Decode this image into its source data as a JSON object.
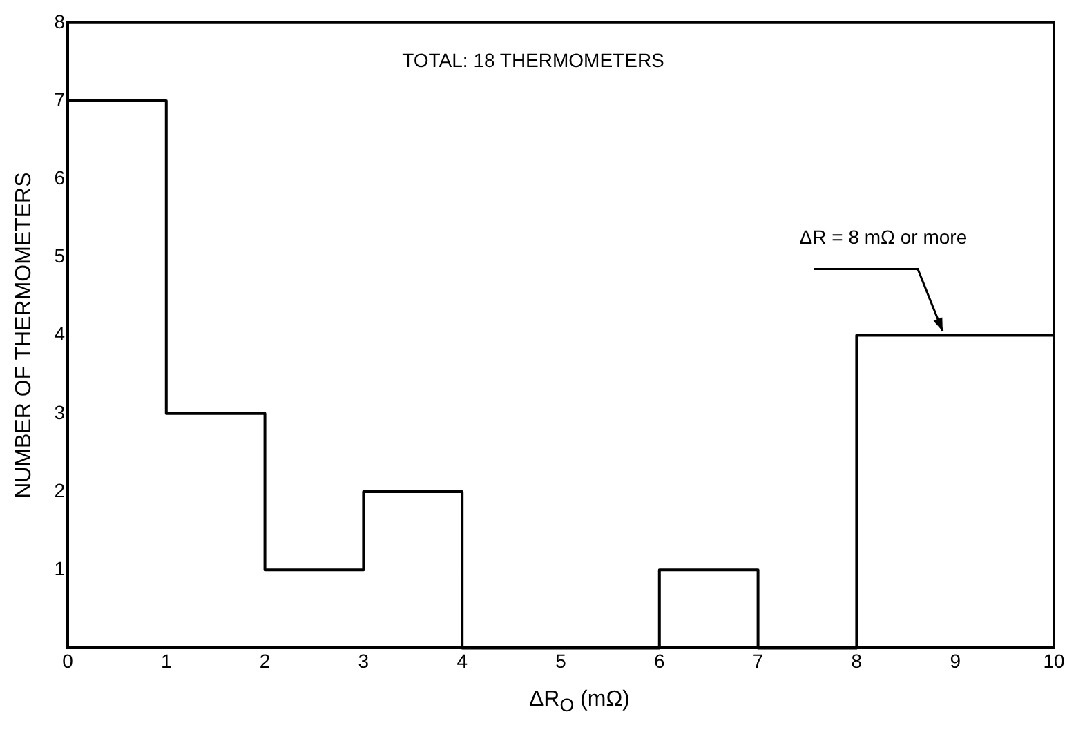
{
  "chart_data": {
    "type": "histogram",
    "bins": [
      0,
      1,
      2,
      3,
      4,
      6,
      7,
      8,
      10
    ],
    "values": [
      7,
      3,
      1,
      2,
      0,
      1,
      0,
      4
    ],
    "color": "#000000",
    "xlabel": "ΔR$_{O}$ (mΩ)",
    "ylabel": "NUMBER OF THERMOMETERS",
    "xlim": [
      0,
      10
    ],
    "xticks": [
      0,
      1,
      2,
      3,
      4,
      5,
      6,
      7,
      8,
      9,
      10
    ],
    "ylim": [
      0,
      8
    ],
    "yticks": [
      1,
      2,
      3,
      4,
      5,
      6,
      7,
      8
    ],
    "grid": false,
    "legend": false,
    "annotations": [
      "TOTAL: 18 THERMOMETERS",
      {
        "text": "ΔR = 8 mΩ or more",
        "x": 8.9,
        "y": 4
      }
    ]
  }
}
